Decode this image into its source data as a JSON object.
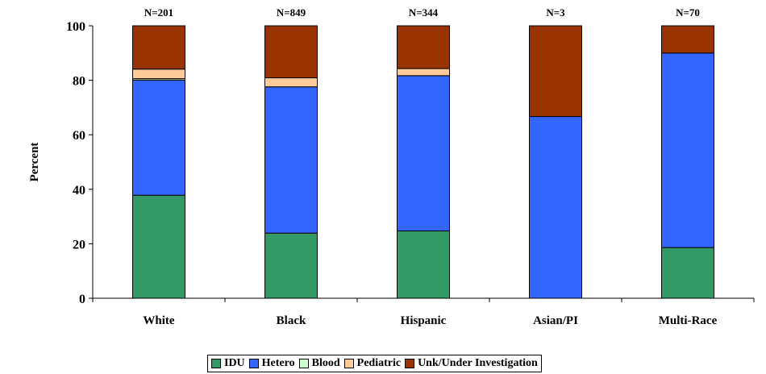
{
  "chart_data": {
    "type": "bar",
    "stacked": true,
    "categories": [
      "White",
      "Black",
      "Hispanic",
      "Asian/PI",
      "Multi-Race"
    ],
    "counts": [
      "N=201",
      "N=849",
      "N=344",
      "N=3",
      "N=70"
    ],
    "ylabel": "Percent",
    "ylim": [
      0,
      100
    ],
    "yticks": [
      0,
      20,
      40,
      60,
      80,
      100
    ],
    "grid": false,
    "legend_position": "bottom",
    "series": [
      {
        "name": "IDU",
        "color": "#339966",
        "values": [
          37.8,
          23.9,
          24.7,
          0,
          18.6
        ]
      },
      {
        "name": "Hetero",
        "color": "#3366ff",
        "values": [
          42.3,
          53.7,
          57.0,
          66.7,
          71.4
        ]
      },
      {
        "name": "Blood",
        "color": "#ccffcc",
        "values": [
          0.5,
          0,
          0,
          0,
          0
        ]
      },
      {
        "name": "Pediatric",
        "color": "#ffcc99",
        "values": [
          3.5,
          3.3,
          2.6,
          0,
          0
        ]
      },
      {
        "name": "Unk/Under Investigation",
        "color": "#993300",
        "values": [
          15.9,
          19.1,
          15.7,
          33.3,
          10.0
        ]
      }
    ]
  }
}
